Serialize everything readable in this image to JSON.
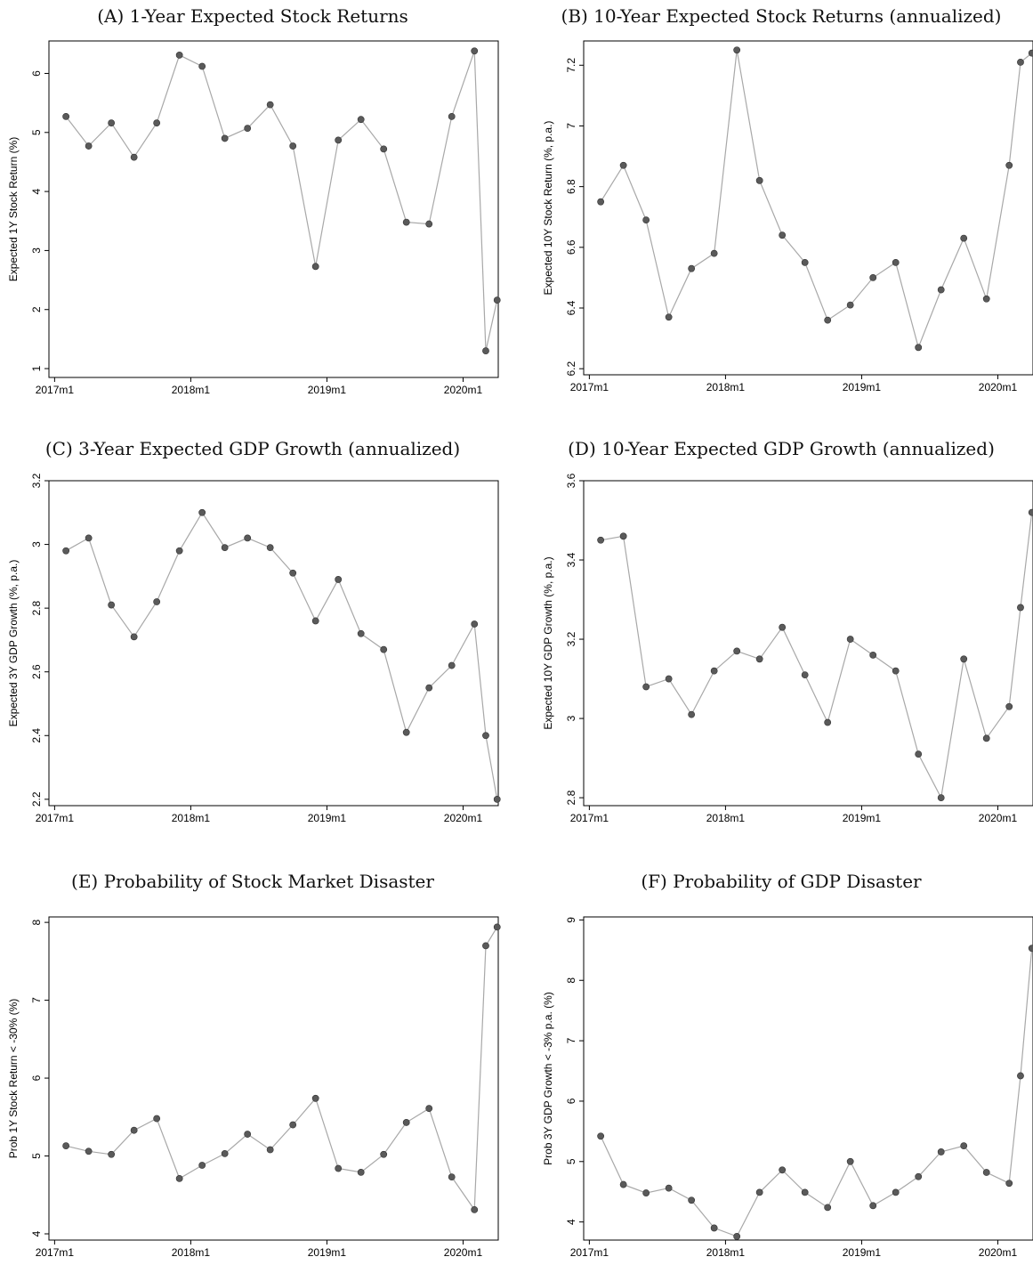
{
  "chart_data": [
    {
      "id": "A",
      "type": "line",
      "title": "(A) 1-Year Expected Stock Returns",
      "xlabel": "",
      "ylabel": "Expected 1Y Stock Return (%)",
      "x_ticks": [
        "2017m1",
        "2018m1",
        "2019m1",
        "2020m1"
      ],
      "y_ticks": [
        1,
        2,
        3,
        4,
        5,
        6
      ],
      "ylim": [
        0.85,
        6.55
      ],
      "xlim": [
        "2016-12",
        "2020-04"
      ],
      "grid": false,
      "marker_color": "#5a5a5a",
      "line_color": "#a8a8a8",
      "series": [
        {
          "x": [
            "2017-02",
            "2017-04",
            "2017-06",
            "2017-08",
            "2017-10",
            "2017-12",
            "2018-02",
            "2018-04",
            "2018-06",
            "2018-08",
            "2018-10",
            "2018-12",
            "2019-02",
            "2019-04",
            "2019-06",
            "2019-08",
            "2019-10",
            "2019-12",
            "2020-02",
            "2020-03",
            "2020-04"
          ],
          "values": [
            5.27,
            4.77,
            5.16,
            4.58,
            5.16,
            6.31,
            6.12,
            4.9,
            5.07,
            5.47,
            4.77,
            2.73,
            4.87,
            5.22,
            4.72,
            3.48,
            3.45,
            5.27,
            6.38,
            1.3,
            2.16
          ]
        }
      ]
    },
    {
      "id": "B",
      "type": "line",
      "title": "(B) 10-Year Expected Stock Returns (annualized)",
      "xlabel": "",
      "ylabel": "Expected 10Y Stock Return (%, p.a.)",
      "x_ticks": [
        "2017m1",
        "2018m1",
        "2019m1",
        "2020m1"
      ],
      "y_ticks": [
        6.2,
        6.4,
        6.6,
        6.8,
        7,
        7.2
      ],
      "ylim": [
        6.18,
        7.28
      ],
      "xlim": [
        "2016-12",
        "2020-04"
      ],
      "grid": false,
      "marker_color": "#5a5a5a",
      "line_color": "#a8a8a8",
      "series": [
        {
          "x": [
            "2017-02",
            "2017-04",
            "2017-06",
            "2017-08",
            "2017-10",
            "2017-12",
            "2018-02",
            "2018-04",
            "2018-06",
            "2018-08",
            "2018-10",
            "2018-12",
            "2019-02",
            "2019-04",
            "2019-06",
            "2019-08",
            "2019-10",
            "2019-12",
            "2020-02",
            "2020-03",
            "2020-04"
          ],
          "values": [
            6.75,
            6.87,
            6.69,
            6.37,
            6.53,
            6.58,
            7.25,
            6.82,
            6.64,
            6.55,
            6.36,
            6.41,
            6.5,
            6.55,
            6.27,
            6.46,
            6.63,
            6.43,
            6.87,
            7.21,
            7.24
          ]
        }
      ]
    },
    {
      "id": "C",
      "type": "line",
      "title": "(C) 3-Year Expected GDP Growth (annualized)",
      "xlabel": "",
      "ylabel": "Expected 3Y GDP Growth (%, p.a.)",
      "x_ticks": [
        "2017m1",
        "2018m1",
        "2019m1",
        "2020m1"
      ],
      "y_ticks": [
        2.2,
        2.4,
        2.6,
        2.8,
        3,
        3.2
      ],
      "ylim": [
        2.18,
        3.2
      ],
      "xlim": [
        "2016-12",
        "2020-04"
      ],
      "grid": false,
      "marker_color": "#5a5a5a",
      "line_color": "#a8a8a8",
      "series": [
        {
          "x": [
            "2017-02",
            "2017-04",
            "2017-06",
            "2017-08",
            "2017-10",
            "2017-12",
            "2018-02",
            "2018-04",
            "2018-06",
            "2018-08",
            "2018-10",
            "2018-12",
            "2019-02",
            "2019-04",
            "2019-06",
            "2019-08",
            "2019-10",
            "2019-12",
            "2020-02",
            "2020-03",
            "2020-04"
          ],
          "values": [
            2.98,
            3.02,
            2.81,
            2.71,
            2.82,
            2.98,
            3.1,
            2.99,
            3.02,
            2.99,
            2.91,
            2.76,
            2.89,
            2.72,
            2.67,
            2.41,
            2.55,
            2.62,
            2.75,
            2.4,
            2.2
          ]
        }
      ]
    },
    {
      "id": "D",
      "type": "line",
      "title": "(D) 10-Year Expected GDP Growth (annualized)",
      "xlabel": "",
      "ylabel": "Expected 10Y GDP Growth (%, p.a.)",
      "x_ticks": [
        "2017m1",
        "2018m1",
        "2019m1",
        "2020m1"
      ],
      "y_ticks": [
        2.8,
        3,
        3.2,
        3.4,
        3.6
      ],
      "ylim": [
        2.78,
        3.6
      ],
      "xlim": [
        "2016-12",
        "2020-04"
      ],
      "grid": false,
      "marker_color": "#5a5a5a",
      "line_color": "#a8a8a8",
      "series": [
        {
          "x": [
            "2017-02",
            "2017-04",
            "2017-06",
            "2017-08",
            "2017-10",
            "2017-12",
            "2018-02",
            "2018-04",
            "2018-06",
            "2018-08",
            "2018-10",
            "2018-12",
            "2019-02",
            "2019-04",
            "2019-06",
            "2019-08",
            "2019-10",
            "2019-12",
            "2020-02",
            "2020-03",
            "2020-04"
          ],
          "values": [
            3.45,
            3.46,
            3.08,
            3.1,
            3.01,
            3.12,
            3.17,
            3.15,
            3.23,
            3.11,
            2.99,
            3.2,
            3.16,
            3.12,
            2.91,
            2.8,
            3.15,
            2.95,
            3.03,
            3.28,
            3.52
          ]
        }
      ]
    },
    {
      "id": "E",
      "type": "line",
      "title": "(E) Probability of Stock Market Disaster",
      "xlabel": "",
      "ylabel": "Prob 1Y Stock Return < -30% (%)",
      "x_ticks": [
        "2017m1",
        "2018m1",
        "2019m1",
        "2020m1"
      ],
      "y_ticks": [
        4,
        5,
        6,
        7,
        8
      ],
      "ylim": [
        3.92,
        8.07
      ],
      "xlim": [
        "2016-12",
        "2020-04"
      ],
      "grid": false,
      "marker_color": "#5a5a5a",
      "line_color": "#a8a8a8",
      "series": [
        {
          "x": [
            "2017-02",
            "2017-04",
            "2017-06",
            "2017-08",
            "2017-10",
            "2017-12",
            "2018-02",
            "2018-04",
            "2018-06",
            "2018-08",
            "2018-10",
            "2018-12",
            "2019-02",
            "2019-04",
            "2019-06",
            "2019-08",
            "2019-10",
            "2019-12",
            "2020-02",
            "2020-03",
            "2020-04"
          ],
          "values": [
            5.13,
            5.06,
            5.02,
            5.33,
            5.48,
            4.71,
            4.88,
            5.03,
            5.28,
            5.08,
            5.4,
            5.74,
            4.84,
            4.79,
            5.02,
            5.43,
            5.61,
            4.73,
            4.31,
            7.7,
            7.94
          ]
        }
      ]
    },
    {
      "id": "F",
      "type": "line",
      "title": "(F) Probability of GDP Disaster",
      "xlabel": "",
      "ylabel": "Prob 3Y GDP Growth < -3% p.a. (%)",
      "x_ticks": [
        "2017m1",
        "2018m1",
        "2019m1",
        "2020m1"
      ],
      "y_ticks": [
        4,
        5,
        6,
        7,
        8,
        9
      ],
      "ylim": [
        3.7,
        9.05
      ],
      "xlim": [
        "2016-12",
        "2020-04"
      ],
      "grid": false,
      "marker_color": "#5a5a5a",
      "line_color": "#a8a8a8",
      "series": [
        {
          "x": [
            "2017-02",
            "2017-04",
            "2017-06",
            "2017-08",
            "2017-10",
            "2017-12",
            "2018-02",
            "2018-04",
            "2018-06",
            "2018-08",
            "2018-10",
            "2018-12",
            "2019-02",
            "2019-04",
            "2019-06",
            "2019-08",
            "2019-10",
            "2019-12",
            "2020-02",
            "2020-03",
            "2020-04"
          ],
          "values": [
            5.42,
            4.62,
            4.48,
            4.56,
            4.36,
            3.9,
            3.76,
            4.49,
            4.86,
            4.49,
            4.24,
            5.0,
            4.27,
            4.49,
            4.75,
            5.16,
            5.26,
            4.82,
            4.64,
            6.42,
            8.53
          ]
        }
      ]
    }
  ]
}
